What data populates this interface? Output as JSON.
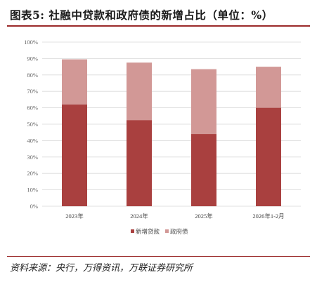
{
  "header": {
    "title": "图表5:   社融中贷款和政府债的新增占比（单位：%）"
  },
  "footer": {
    "source": "资料来源：央行，万得资讯，万联证券研究所"
  },
  "chart_data": {
    "type": "bar",
    "stacked": true,
    "categories": [
      "2023年",
      "2024年",
      "2025年",
      "2026年1-2月"
    ],
    "series": [
      {
        "name": "新增贷款",
        "values": [
          62,
          52.5,
          44,
          60
        ],
        "color": "#a9403f"
      },
      {
        "name": "政府债",
        "values": [
          27.5,
          35,
          39.5,
          25
        ],
        "color": "#d29896"
      }
    ],
    "ylim": [
      0,
      100
    ],
    "yticks": [
      "0%",
      "10%",
      "20%",
      "30%",
      "40%",
      "50%",
      "60%",
      "70%",
      "80%",
      "90%",
      "100%"
    ],
    "grid": true,
    "legend": "bottom"
  }
}
